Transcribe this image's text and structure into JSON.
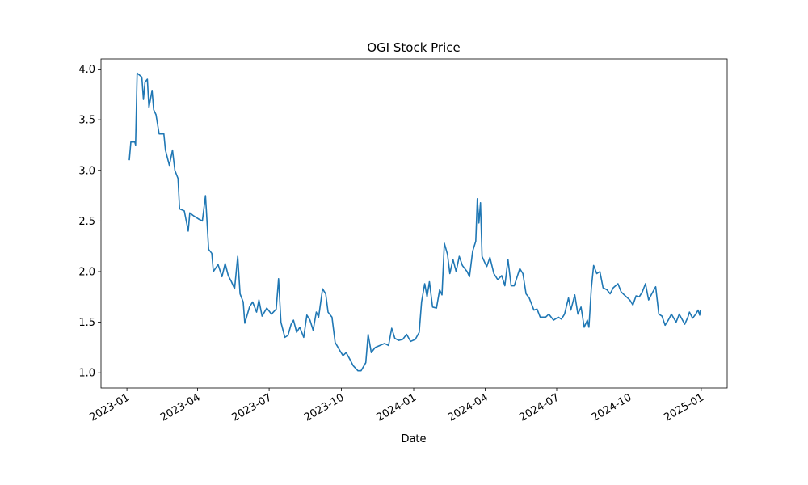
{
  "chart_data": {
    "type": "line",
    "title": "OGI Stock Price",
    "x_label": "Date",
    "x": [
      "2023-01-04",
      "2023-01-06",
      "2023-01-11",
      "2023-01-12",
      "2023-01-14",
      "2023-01-20",
      "2023-01-22",
      "2023-01-24",
      "2023-01-27",
      "2023-01-29",
      "2023-02-02",
      "2023-02-04",
      "2023-02-07",
      "2023-02-11",
      "2023-02-17",
      "2023-02-19",
      "2023-02-24",
      "2023-02-28",
      "2023-03-03",
      "2023-03-07",
      "2023-03-09",
      "2023-03-15",
      "2023-03-20",
      "2023-03-22",
      "2023-03-27",
      "2023-04-02",
      "2023-04-07",
      "2023-04-11",
      "2023-04-15",
      "2023-04-19",
      "2023-04-21",
      "2023-04-27",
      "2023-05-02",
      "2023-05-06",
      "2023-05-10",
      "2023-05-14",
      "2023-05-18",
      "2023-05-22",
      "2023-05-25",
      "2023-05-29",
      "2023-05-31",
      "2023-06-06",
      "2023-06-10",
      "2023-06-15",
      "2023-06-18",
      "2023-06-22",
      "2023-06-28",
      "2023-07-04",
      "2023-07-10",
      "2023-07-13",
      "2023-07-16",
      "2023-07-21",
      "2023-07-25",
      "2023-07-29",
      "2023-08-01",
      "2023-08-05",
      "2023-08-09",
      "2023-08-14",
      "2023-08-18",
      "2023-08-22",
      "2023-08-26",
      "2023-08-30",
      "2023-09-02",
      "2023-09-07",
      "2023-09-11",
      "2023-09-14",
      "2023-09-19",
      "2023-09-23",
      "2023-09-29",
      "2023-10-03",
      "2023-10-07",
      "2023-10-12",
      "2023-10-16",
      "2023-10-22",
      "2023-10-26",
      "2023-11-01",
      "2023-11-04",
      "2023-11-08",
      "2023-11-13",
      "2023-11-19",
      "2023-11-25",
      "2023-11-30",
      "2023-12-04",
      "2023-12-08",
      "2023-12-13",
      "2023-12-18",
      "2023-12-23",
      "2023-12-28",
      "2024-01-03",
      "2024-01-08",
      "2024-01-11",
      "2024-01-15",
      "2024-01-18",
      "2024-01-21",
      "2024-01-25",
      "2024-01-30",
      "2024-02-03",
      "2024-02-06",
      "2024-02-09",
      "2024-02-13",
      "2024-02-16",
      "2024-02-20",
      "2024-02-24",
      "2024-02-28",
      "2024-03-03",
      "2024-03-09",
      "2024-03-12",
      "2024-03-16",
      "2024-03-20",
      "2024-03-22",
      "2024-03-24",
      "2024-03-26",
      "2024-03-28",
      "2024-04-01",
      "2024-04-03",
      "2024-04-07",
      "2024-04-12",
      "2024-04-17",
      "2024-04-22",
      "2024-04-26",
      "2024-04-30",
      "2024-05-04",
      "2024-05-08",
      "2024-05-15",
      "2024-05-19",
      "2024-05-23",
      "2024-05-27",
      "2024-06-02",
      "2024-06-06",
      "2024-06-10",
      "2024-06-17",
      "2024-06-21",
      "2024-06-27",
      "2024-07-03",
      "2024-07-07",
      "2024-07-11",
      "2024-07-16",
      "2024-07-19",
      "2024-07-24",
      "2024-07-28",
      "2024-08-01",
      "2024-08-05",
      "2024-08-09",
      "2024-08-11",
      "2024-08-14",
      "2024-08-17",
      "2024-08-21",
      "2024-08-25",
      "2024-08-29",
      "2024-09-03",
      "2024-09-07",
      "2024-09-11",
      "2024-09-17",
      "2024-09-21",
      "2024-09-25",
      "2024-10-02",
      "2024-10-06",
      "2024-10-10",
      "2024-10-14",
      "2024-10-18",
      "2024-10-22",
      "2024-10-26",
      "2024-10-30",
      "2024-11-04",
      "2024-11-08",
      "2024-11-12",
      "2024-11-16",
      "2024-11-20",
      "2024-11-24",
      "2024-11-30",
      "2024-12-04",
      "2024-12-11",
      "2024-12-15",
      "2024-12-17",
      "2024-12-21",
      "2024-12-25",
      "2024-12-28",
      "2024-12-30",
      "2024-12-31"
    ],
    "series": [
      {
        "color": "#1f77b4",
        "values": [
          3.1,
          3.28,
          3.28,
          3.25,
          3.96,
          3.92,
          3.7,
          3.87,
          3.9,
          3.62,
          3.79,
          3.6,
          3.55,
          3.36,
          3.36,
          3.2,
          3.05,
          3.2,
          3.0,
          2.92,
          2.62,
          2.6,
          2.4,
          2.58,
          2.55,
          2.52,
          2.5,
          2.75,
          2.22,
          2.18,
          2.0,
          2.07,
          1.95,
          2.08,
          1.96,
          1.9,
          1.83,
          2.15,
          1.78,
          1.7,
          1.49,
          1.65,
          1.7,
          1.6,
          1.72,
          1.56,
          1.64,
          1.58,
          1.63,
          1.93,
          1.5,
          1.35,
          1.37,
          1.48,
          1.52,
          1.4,
          1.45,
          1.35,
          1.57,
          1.52,
          1.42,
          1.6,
          1.55,
          1.83,
          1.78,
          1.6,
          1.55,
          1.3,
          1.22,
          1.17,
          1.2,
          1.13,
          1.07,
          1.02,
          1.02,
          1.1,
          1.38,
          1.2,
          1.25,
          1.27,
          1.29,
          1.27,
          1.44,
          1.34,
          1.32,
          1.33,
          1.38,
          1.31,
          1.33,
          1.4,
          1.7,
          1.88,
          1.75,
          1.9,
          1.65,
          1.64,
          1.82,
          1.77,
          2.28,
          2.17,
          1.98,
          2.12,
          2.0,
          2.15,
          2.06,
          2.0,
          1.95,
          2.2,
          2.3,
          2.72,
          2.48,
          2.68,
          2.15,
          2.08,
          2.05,
          2.14,
          1.98,
          1.92,
          1.96,
          1.86,
          2.12,
          1.86,
          1.86,
          2.03,
          1.98,
          1.78,
          1.74,
          1.62,
          1.63,
          1.55,
          1.55,
          1.58,
          1.52,
          1.55,
          1.53,
          1.58,
          1.74,
          1.62,
          1.77,
          1.58,
          1.65,
          1.45,
          1.52,
          1.45,
          1.83,
          2.06,
          1.98,
          2.0,
          1.84,
          1.82,
          1.78,
          1.84,
          1.88,
          1.8,
          1.77,
          1.72,
          1.67,
          1.76,
          1.75,
          1.8,
          1.88,
          1.72,
          1.78,
          1.85,
          1.58,
          1.56,
          1.47,
          1.52,
          1.58,
          1.5,
          1.58,
          1.48,
          1.55,
          1.6,
          1.54,
          1.58,
          1.62,
          1.57,
          1.62
        ]
      }
    ],
    "xlim": [
      "2022-11-29",
      "2025-02-03"
    ],
    "xticks": [
      {
        "value": "2023-01-01",
        "label": "2023-01"
      },
      {
        "value": "2023-04-01",
        "label": "2023-04"
      },
      {
        "value": "2023-07-01",
        "label": "2023-07"
      },
      {
        "value": "2023-10-01",
        "label": "2023-10"
      },
      {
        "value": "2024-01-01",
        "label": "2024-01"
      },
      {
        "value": "2024-04-01",
        "label": "2024-04"
      },
      {
        "value": "2024-07-01",
        "label": "2024-07"
      },
      {
        "value": "2024-10-01",
        "label": "2024-10"
      },
      {
        "value": "2025-01-01",
        "label": "2025-01"
      }
    ],
    "ylim": [
      0.85,
      4.1
    ],
    "yticks": [
      {
        "value": 1,
        "label": "1.0"
      },
      {
        "value": 1.5,
        "label": "1.5"
      },
      {
        "value": 2,
        "label": "2.0"
      },
      {
        "value": 2.5,
        "label": "2.5"
      },
      {
        "value": 3,
        "label": "3.0"
      },
      {
        "value": 3.5,
        "label": "3.5"
      },
      {
        "value": 4,
        "label": "4.0"
      }
    ],
    "grid": false
  }
}
